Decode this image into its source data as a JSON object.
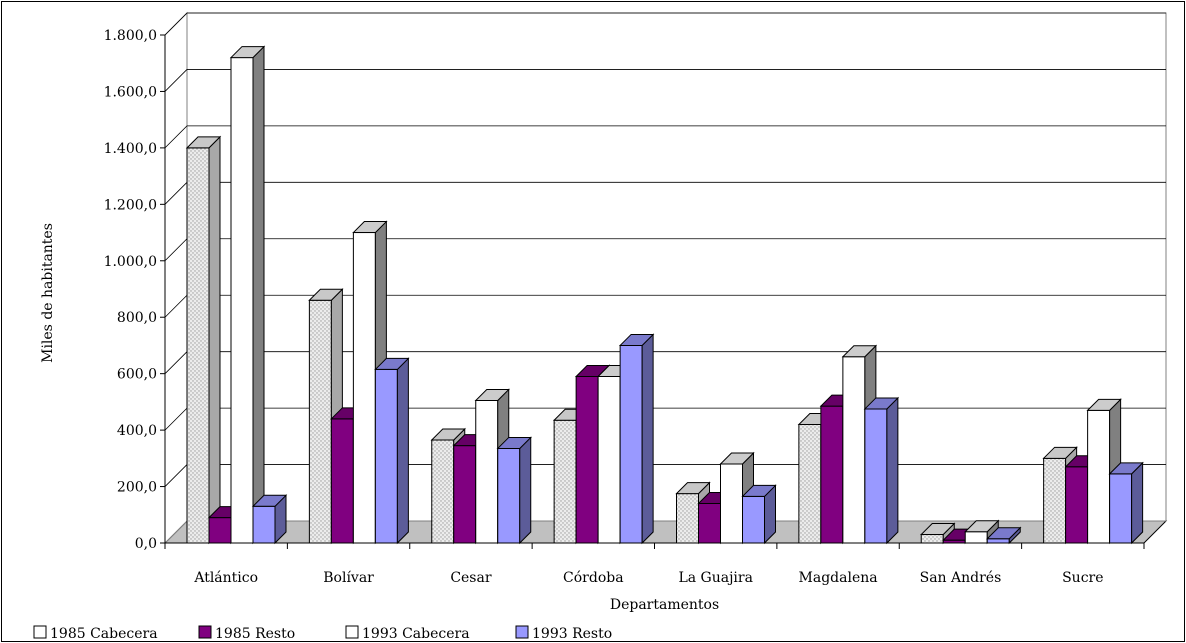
{
  "chart_data": {
    "type": "bar",
    "style": "3d-clustered-column",
    "xlabel": "Departamentos",
    "ylabel": "Miles de habitantes",
    "ylim": [
      0,
      1800
    ],
    "ytick_step": 200,
    "ytick_labels": [
      "0,0",
      "200,0",
      "400,0",
      "600,0",
      "800,0",
      "1.000,0",
      "1.200,0",
      "1.400,0",
      "1.600,0",
      "1.800,0"
    ],
    "grid": true,
    "legend_position": "bottom-left",
    "categories": [
      "Atlántico",
      "Bolívar",
      "Cesar",
      "Córdoba",
      "La Guajira",
      "Magdalena",
      "San Andrés",
      "Sucre"
    ],
    "series": [
      {
        "name": "1985 Cabecera",
        "values": [
          1400,
          860,
          365,
          435,
          175,
          420,
          30,
          300
        ],
        "color": "#e8e8e8",
        "pattern": "dots"
      },
      {
        "name": "1985 Resto",
        "values": [
          90,
          440,
          345,
          590,
          140,
          485,
          10,
          270
        ],
        "color": "#800080"
      },
      {
        "name": "1993 Cabecera",
        "values": [
          1720,
          1100,
          505,
          590,
          280,
          660,
          40,
          470
        ],
        "color": "#ffffff"
      },
      {
        "name": "1993 Resto",
        "values": [
          130,
          615,
          335,
          700,
          165,
          475,
          15,
          245
        ],
        "color": "#9999ff"
      }
    ]
  }
}
